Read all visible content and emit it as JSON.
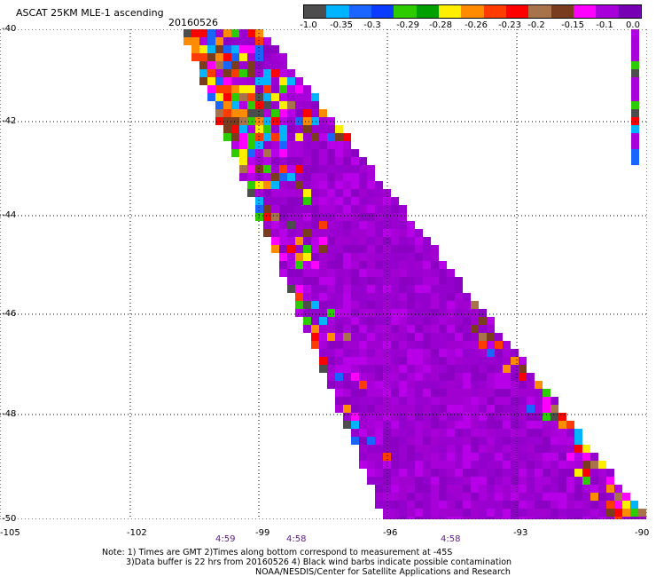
{
  "header": {
    "title": "ASCAT 25KM MLE-1 ascending",
    "date": "20160526"
  },
  "colorbar": {
    "colors": [
      "#4d4d4d",
      "#00b4ff",
      "#1a64ff",
      "#0a3cff",
      "#2ccc00",
      "#00a000",
      "#ffee00",
      "#ff8c00",
      "#ff3c00",
      "#ff0000",
      "#a8724a",
      "#7a3c1e",
      "#ff00ff",
      "#a800d8",
      "#7800b4"
    ],
    "labels": [
      "-1.0",
      "-0.35",
      "-0.3",
      "-0.29",
      "-0.28",
      "-0.26",
      "-0.23",
      "-0.2",
      "-0.15",
      "-0.1",
      "0.0"
    ]
  },
  "map": {
    "lat_labels": [
      "-40",
      "-42",
      "-44",
      "-46",
      "-48",
      "-50"
    ],
    "lon_labels": [
      "-105",
      "-102",
      "-99",
      "-96",
      "-93",
      "-90"
    ],
    "time_labels": [
      "4:59",
      "4:58",
      "4:58"
    ]
  },
  "notes": {
    "line1": "Note: 1) Times are GMT 2)Times along bottom correspond to measurement at -45S",
    "line2": "3)Data buffer is 22 hrs from 20160526 4) Black wind barbs indicate possible contamination",
    "line3": "NOAA/NESDIS/Center for Satellite Applications and Research"
  }
}
